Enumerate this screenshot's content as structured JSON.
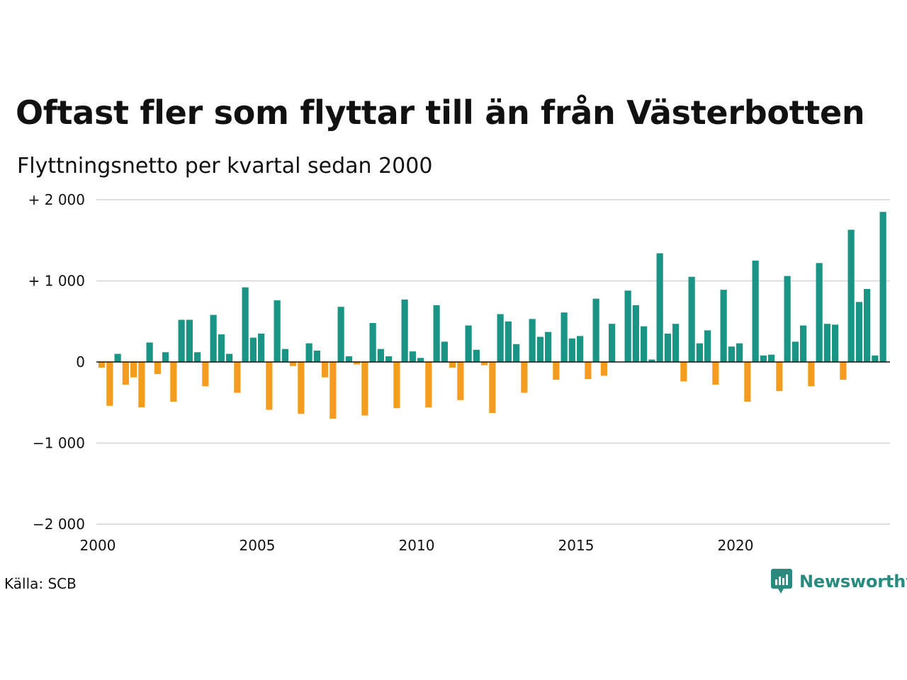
{
  "title": "Oftast fler som flyttar till än från Västerbotten",
  "subtitle": "Flyttningsnetto per kvartal sedan 2000",
  "source": "Källa: SCB",
  "brand": {
    "name": "Newsworthy",
    "color": "#2a8a7e",
    "icon": "newsworthy-logo-icon"
  },
  "colors": {
    "positive": "#1a9484",
    "negative": "#f39c1e",
    "grid": "#dddddd",
    "zero": "#111111"
  },
  "chart_data": {
    "type": "bar",
    "x_start": "2000-Q1",
    "frequency": "quarter",
    "ylim": [
      -2000,
      2000
    ],
    "yticks": [
      2000,
      1000,
      0,
      -1000,
      -2000
    ],
    "ytick_labels": [
      "+ 2 000",
      "+ 1 000",
      "0",
      "−1 000",
      "−2 000"
    ],
    "xticks": [
      2000,
      2005,
      2010,
      2015,
      2020
    ],
    "xtick_labels": [
      "2000",
      "2005",
      "2010",
      "2015",
      "2020"
    ],
    "values": [
      -70,
      -540,
      100,
      -280,
      -190,
      -560,
      240,
      -150,
      120,
      -490,
      520,
      520,
      120,
      -300,
      580,
      340,
      100,
      -380,
      920,
      300,
      350,
      -590,
      760,
      160,
      -50,
      -640,
      230,
      140,
      -190,
      -700,
      680,
      70,
      -30,
      -660,
      480,
      160,
      70,
      -570,
      770,
      130,
      50,
      -560,
      700,
      250,
      -70,
      -470,
      450,
      150,
      -40,
      -630,
      590,
      500,
      220,
      -380,
      530,
      310,
      370,
      -220,
      610,
      290,
      320,
      -210,
      780,
      -170,
      470,
      0,
      880,
      700,
      440,
      30,
      1340,
      350,
      470,
      -240,
      1050,
      230,
      390,
      -280,
      890,
      190,
      230,
      -490,
      1250,
      80,
      90,
      -360,
      1060,
      250,
      450,
      -300,
      1220,
      470,
      460,
      -220,
      1630,
      740,
      900,
      80,
      1850
    ]
  }
}
